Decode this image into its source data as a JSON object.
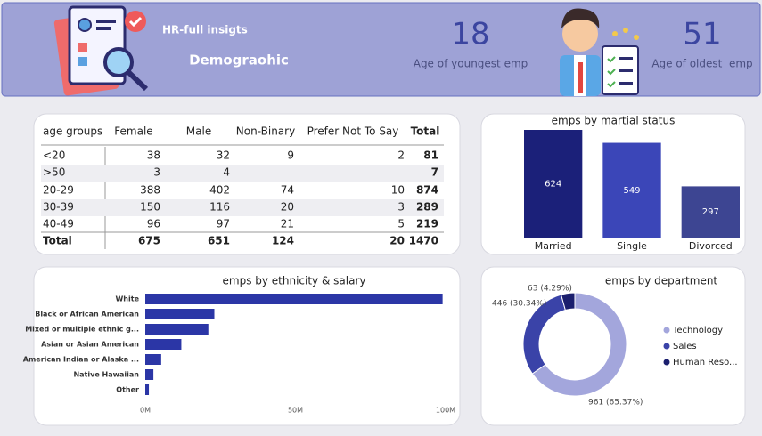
{
  "header": {
    "title": "HR-full insigts",
    "subtitle": "Demograohic"
  },
  "kpis": [
    {
      "value": 18,
      "label": "Age of youngest emp"
    },
    {
      "value": 51,
      "label": "Age of oldest  emp"
    }
  ],
  "table": {
    "columns": [
      "age groups",
      "Female",
      "Male",
      "Non-Binary",
      "Prefer Not To Say",
      "Total"
    ],
    "rows": [
      [
        "<20",
        38,
        32,
        9,
        2,
        81
      ],
      [
        ">50",
        3,
        4,
        null,
        null,
        7
      ],
      [
        "20-29",
        388,
        402,
        74,
        10,
        874
      ],
      [
        "30-39",
        150,
        116,
        20,
        3,
        289
      ],
      [
        "40-49",
        96,
        97,
        21,
        5,
        219
      ]
    ],
    "total": [
      "Total",
      675,
      651,
      124,
      20,
      1470
    ]
  },
  "chart_data": [
    {
      "type": "bar",
      "title": "emps by martial status",
      "categories": [
        "Married",
        "Single",
        "Divorced"
      ],
      "values": [
        624,
        549,
        297
      ],
      "colors": [
        "#1b2079",
        "#3b46b8",
        "#3d4592"
      ]
    },
    {
      "type": "bar",
      "orientation": "horizontal",
      "title": "emps by ethnicity & salary",
      "categories": [
        "White",
        "Black or African American",
        "Mixed or multiple ethnic g...",
        "Asian or Asian American",
        "American Indian or Alaska ...",
        "Native Hawaiian",
        "Other"
      ],
      "values": [
        99000000,
        23000000,
        21000000,
        12000000,
        5300000,
        2700000,
        1200000
      ],
      "color": "#2b36a6",
      "xlim": [
        0,
        100000000
      ],
      "xticks": [
        {
          "value": 0,
          "label": "0M"
        },
        {
          "value": 50000000,
          "label": "50M"
        },
        {
          "value": 100000000,
          "label": "100M"
        }
      ]
    },
    {
      "type": "donut",
      "title": "emps by department",
      "categories": [
        "Technology",
        "Sales",
        "Human Reso..."
      ],
      "values": [
        961,
        446,
        63
      ],
      "value_labels": [
        "961 (65.37%)",
        "446 (30.34%)",
        "63 (4.29%)"
      ],
      "colors": [
        "#a3a6dc",
        "#3a43a8",
        "#1b1f6e"
      ]
    }
  ]
}
